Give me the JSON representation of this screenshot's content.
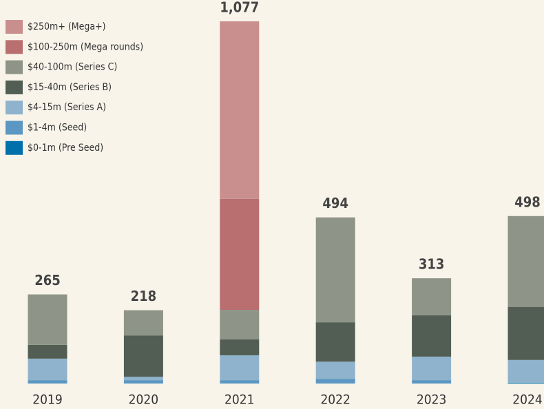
{
  "chart_data": {
    "type": "stacked_bar",
    "categories": [
      "2019",
      "2020",
      "2021",
      "2022",
      "2023",
      "2024"
    ],
    "series": [
      {
        "name": "$0-1m (Pre Seed)",
        "color": "#0070aa",
        "values": [
          0,
          0,
          0,
          0,
          0,
          2
        ]
      },
      {
        "name": "$1-4m (Seed)",
        "color": "#5b97c2",
        "values": [
          10,
          10,
          10,
          14,
          10,
          0
        ]
      },
      {
        "name": "$4-15m (Series A)",
        "color": "#8fb3cc",
        "values": [
          64,
          10,
          74,
          51,
          70,
          68
        ]
      },
      {
        "name": "$15-40m (Series B)",
        "color": "#525e53",
        "values": [
          41,
          123,
          47,
          117,
          123,
          158
        ]
      },
      {
        "name": "$40-100m (Series C)",
        "color": "#8e9487",
        "values": [
          150,
          75,
          88,
          312,
          110,
          270
        ]
      },
      {
        "name": "$100-250m (Mega rounds)",
        "color": "#b96e70",
        "values": [
          0,
          0,
          330,
          0,
          0,
          0
        ]
      },
      {
        "name": "$250m+ (Mega+)",
        "color": "#c98f8e",
        "values": [
          0,
          0,
          528,
          0,
          0,
          0
        ]
      }
    ],
    "totals": [
      265,
      218,
      1077,
      494,
      313,
      498
    ],
    "value_labels": [
      "265",
      "218",
      "1,077",
      "494",
      "313",
      "498"
    ],
    "ylim": [
      0,
      1100
    ],
    "legend": "top-left"
  }
}
